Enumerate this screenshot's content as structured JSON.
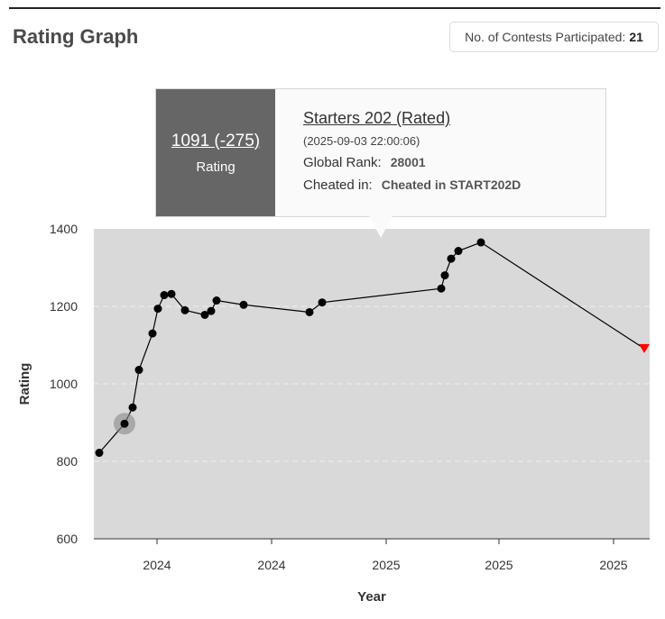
{
  "header": {
    "title": "Rating Graph",
    "contests_label": "No. of Contests Participated:",
    "contests_count": "21"
  },
  "tooltip": {
    "rating_text": "1091 (-275)",
    "rating_label": "Rating",
    "contest_name": "Starters 202 (Rated)",
    "contest_datetime": "(2025-09-03 22:00:06)",
    "global_rank_label": "Global Rank:",
    "global_rank": "28001",
    "cheated_label": "Cheated in:",
    "cheated_value": "Cheated in START202D"
  },
  "colors": {
    "plot_bg": "#d9d9d9",
    "point": "#000000",
    "last_point": "#ff0000",
    "highlight": "#888888",
    "tooltip_left_bg": "#666666"
  },
  "chart_data": {
    "type": "line",
    "xlabel": "Year",
    "ylabel": "Rating",
    "ylim": [
      600,
      1400
    ],
    "yticks": [
      600,
      800,
      1000,
      1200,
      1400
    ],
    "xticks": [
      "2024",
      "2024",
      "2025",
      "2025",
      "2025"
    ],
    "grid": true,
    "series": [
      {
        "values": [
          822,
          897,
          939,
          1036,
          1130,
          1194,
          1229,
          1232,
          1190,
          1178,
          1188,
          1215,
          1204,
          1185,
          1210,
          1246,
          1280,
          1323,
          1343,
          1365,
          1091
        ],
        "highlighted_index": 1,
        "last_marker": "triangle"
      }
    ]
  }
}
